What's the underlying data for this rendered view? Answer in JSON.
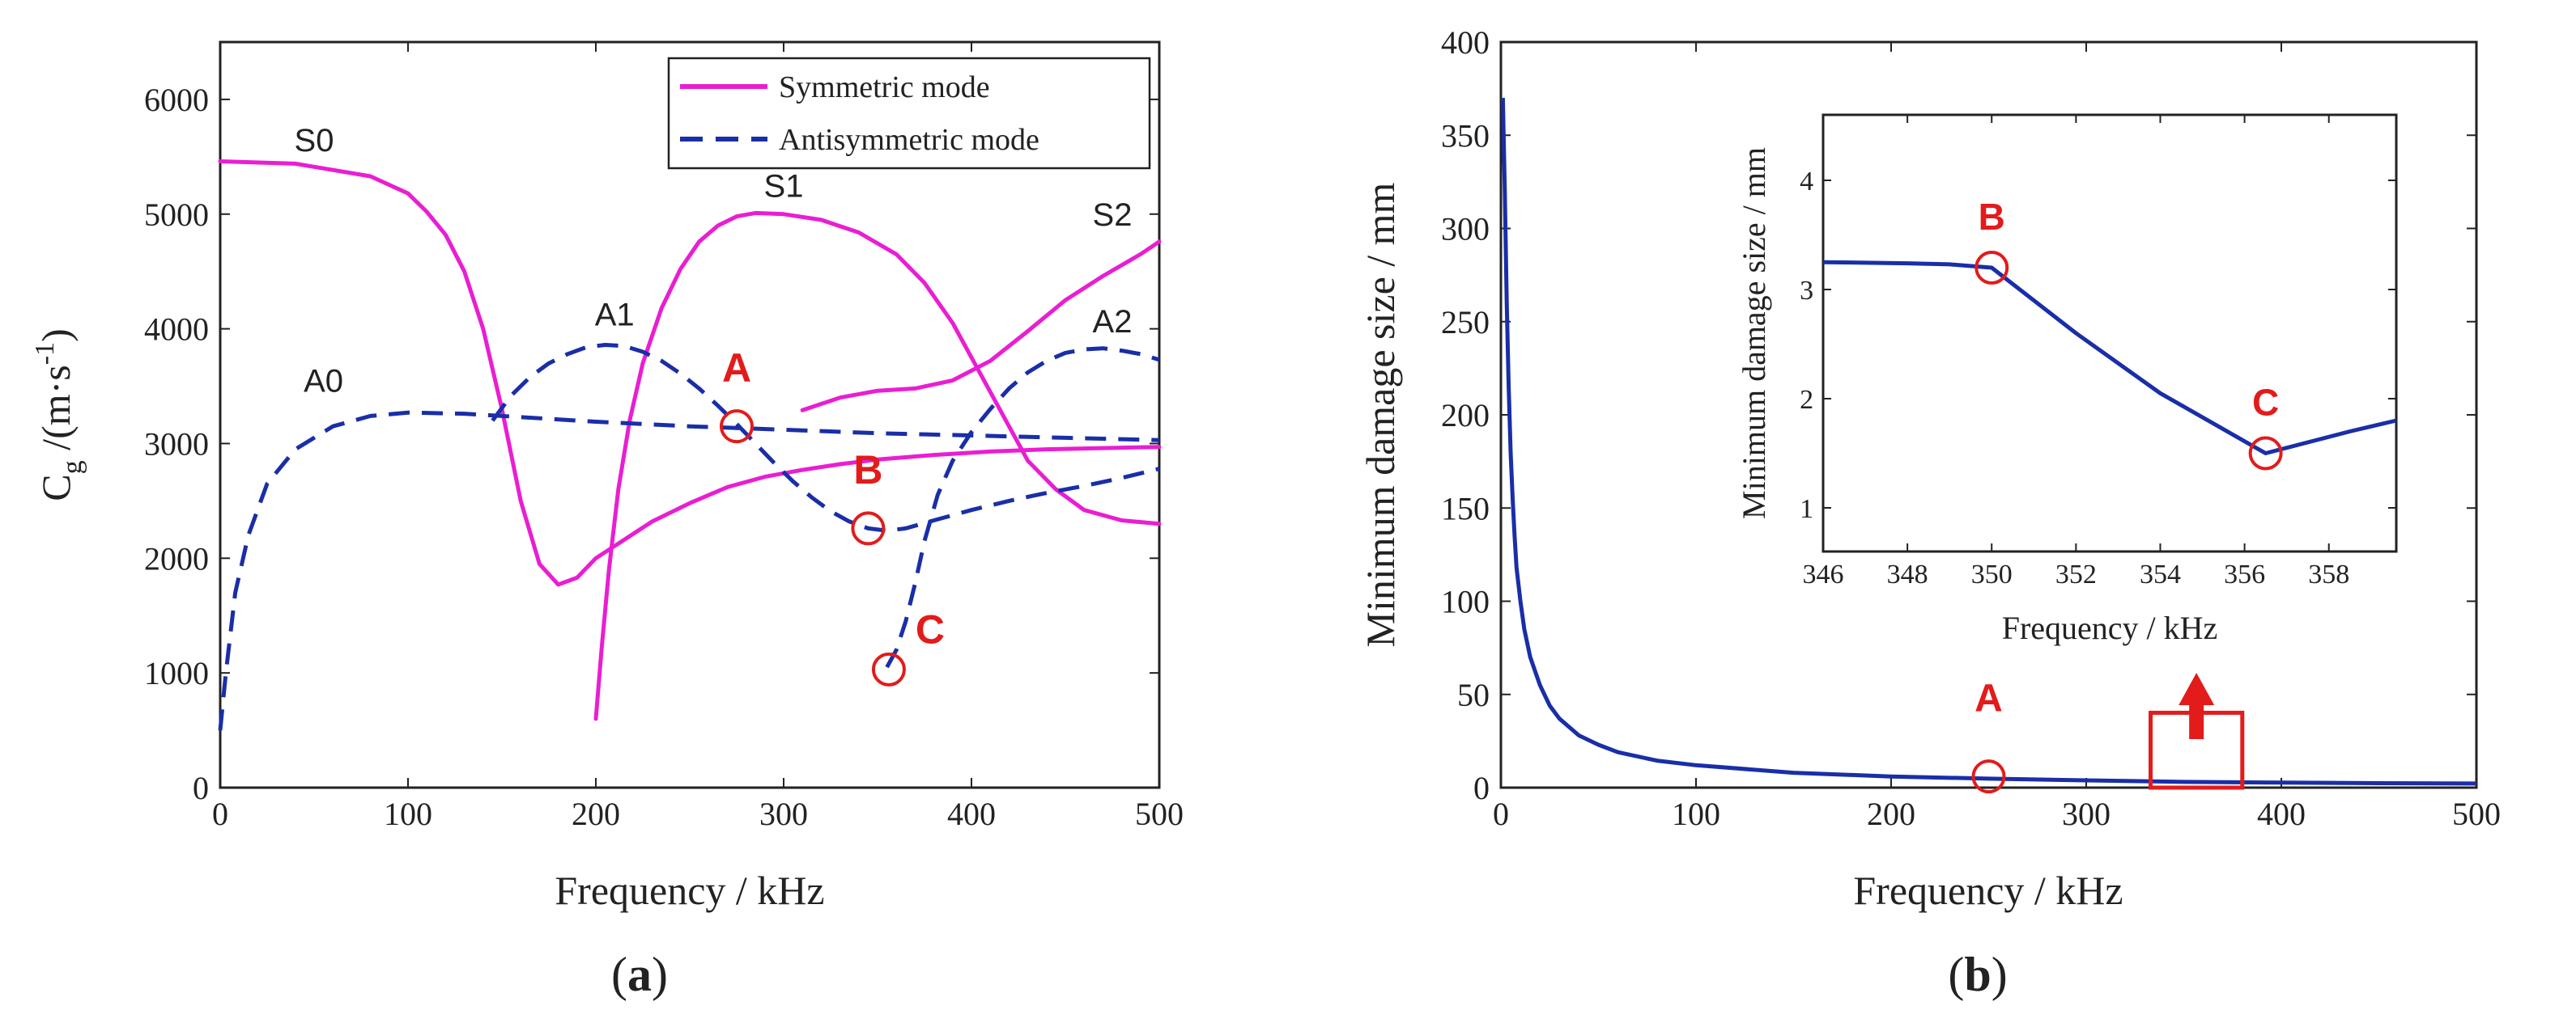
{
  "chart_data": [
    {
      "panel_label": "a",
      "type": "line",
      "xlabel": "Frequency / kHz",
      "ylabel_main": "C",
      "ylabel_sub": "g",
      "ylabel_unit": " /(m·s",
      "ylabel_sup": "-1",
      "ylabel_close": ")",
      "xlim": [
        0,
        500
      ],
      "ylim": [
        0,
        6500
      ],
      "xticks": [
        0,
        100,
        200,
        300,
        400,
        500
      ],
      "yticks": [
        0,
        1000,
        2000,
        3000,
        4000,
        5000,
        6000
      ],
      "legend": {
        "position": "top-right",
        "entries": [
          {
            "label": "Symmetric mode",
            "color": "#e91ed2",
            "dash": "solid"
          },
          {
            "label": "Antisymmetric mode",
            "color": "#1a2ea8",
            "dash": "dashed"
          }
        ]
      },
      "series": [
        {
          "name": "S0",
          "mode": "symmetric",
          "color": "#e91ed2",
          "x": [
            0,
            40,
            80,
            100,
            110,
            120,
            130,
            140,
            150,
            160,
            170,
            180,
            190,
            200,
            215,
            230,
            250,
            270,
            290,
            310,
            330,
            350,
            380,
            410,
            440,
            470,
            500
          ],
          "y": [
            5460,
            5440,
            5330,
            5180,
            5020,
            4820,
            4500,
            4000,
            3300,
            2500,
            1950,
            1770,
            1830,
            2000,
            2160,
            2320,
            2480,
            2620,
            2710,
            2770,
            2820,
            2860,
            2900,
            2930,
            2950,
            2960,
            2970
          ]
        },
        {
          "name": "S1",
          "mode": "symmetric",
          "color": "#e91ed2",
          "x": [
            200,
            203,
            207,
            212,
            218,
            225,
            235,
            245,
            255,
            265,
            275,
            285,
            300,
            320,
            340,
            360,
            375,
            390,
            400,
            410,
            420,
            430,
            445,
            460,
            480,
            500
          ],
          "y": [
            600,
            1200,
            1900,
            2600,
            3200,
            3700,
            4180,
            4520,
            4760,
            4900,
            4980,
            5010,
            5000,
            4950,
            4840,
            4650,
            4400,
            4050,
            3750,
            3450,
            3150,
            2850,
            2600,
            2420,
            2330,
            2300
          ]
        },
        {
          "name": "S2",
          "mode": "symmetric",
          "color": "#e91ed2",
          "x": [
            310,
            330,
            350,
            370,
            390,
            410,
            430,
            450,
            470,
            490,
            500
          ],
          "y": [
            3290,
            3400,
            3460,
            3480,
            3550,
            3720,
            3980,
            4250,
            4460,
            4650,
            4760
          ]
        },
        {
          "name": "A0",
          "mode": "antisymmetric",
          "color": "#1a2ea8",
          "x": [
            0,
            3,
            8,
            15,
            25,
            40,
            60,
            80,
            100,
            130,
            160,
            200,
            250,
            300,
            350,
            400,
            450,
            500
          ],
          "y": [
            500,
            1000,
            1700,
            2200,
            2650,
            2950,
            3150,
            3240,
            3270,
            3260,
            3230,
            3190,
            3150,
            3120,
            3090,
            3070,
            3050,
            3030
          ]
        },
        {
          "name": "A1",
          "mode": "antisymmetric",
          "color": "#1a2ea8",
          "x": [
            145,
            155,
            165,
            175,
            185,
            195,
            205,
            215,
            225,
            235,
            245,
            255,
            265,
            275,
            285,
            295,
            305,
            315,
            325,
            335,
            345,
            355,
            365,
            380,
            400,
            420,
            440,
            460,
            480,
            500
          ],
          "y": [
            3200,
            3420,
            3580,
            3700,
            3780,
            3840,
            3860,
            3850,
            3800,
            3720,
            3610,
            3480,
            3330,
            3170,
            3000,
            2830,
            2670,
            2530,
            2410,
            2320,
            2260,
            2240,
            2260,
            2330,
            2420,
            2500,
            2570,
            2630,
            2700,
            2780
          ]
        },
        {
          "name": "A2",
          "mode": "antisymmetric",
          "color": "#1a2ea8",
          "x": [
            355,
            360,
            365,
            370,
            375,
            382,
            390,
            400,
            410,
            420,
            430,
            440,
            450,
            460,
            470,
            480,
            490,
            500
          ],
          "y": [
            1050,
            1200,
            1450,
            1780,
            2150,
            2550,
            2850,
            3100,
            3300,
            3480,
            3620,
            3720,
            3790,
            3820,
            3830,
            3810,
            3780,
            3730
          ]
        }
      ],
      "curve_labels": [
        {
          "text": "S0",
          "x": 50,
          "y": 5550
        },
        {
          "text": "S1",
          "x": 300,
          "y": 5150
        },
        {
          "text": "S2",
          "x": 475,
          "y": 4900
        },
        {
          "text": "A0",
          "x": 55,
          "y": 3450
        },
        {
          "text": "A1",
          "x": 210,
          "y": 4030
        },
        {
          "text": "A2",
          "x": 475,
          "y": 3970
        }
      ],
      "markers": [
        {
          "text": "A",
          "x": 275,
          "y": 3150,
          "label_dx": 0,
          "label_dy": 390
        },
        {
          "text": "B",
          "x": 345,
          "y": 2260,
          "label_dx": 0,
          "label_dy": 390
        },
        {
          "text": "C",
          "x": 356,
          "y": 1030,
          "label_dx": 22,
          "label_dy": 230
        }
      ]
    },
    {
      "panel_label": "b",
      "type": "line",
      "xlabel": "Frequency / kHz",
      "ylabel": "Minimum damage size / mm",
      "xlim": [
        0,
        500
      ],
      "ylim": [
        0,
        400
      ],
      "xticks": [
        0,
        100,
        200,
        300,
        400,
        500
      ],
      "yticks": [
        0,
        50,
        100,
        150,
        200,
        250,
        300,
        350,
        400
      ],
      "series": [
        {
          "name": "Minimum damage size",
          "color": "#1a2ea8",
          "x": [
            1,
            2,
            3,
            4,
            5,
            6,
            7,
            8,
            10,
            12,
            15,
            20,
            25,
            30,
            40,
            50,
            60,
            80,
            100,
            150,
            200,
            250,
            300,
            350,
            400,
            450,
            500
          ],
          "y": [
            370,
            320,
            260,
            215,
            180,
            155,
            135,
            118,
            100,
            85,
            70,
            55,
            44,
            37,
            28,
            23,
            19,
            14.5,
            12,
            8,
            6,
            4.8,
            3.9,
            3.1,
            2.7,
            2.4,
            2.2
          ]
        }
      ],
      "markers": [
        {
          "text": "A",
          "x": 250,
          "y": 6,
          "label_dx": 0,
          "label_dy": 35
        }
      ],
      "zoom_box": {
        "x0": 333,
        "x1": 380,
        "y0": 0,
        "y1": 15
      },
      "arrow_label": "",
      "inset": {
        "xlabel": "Frequency / kHz",
        "ylabel": "Minimum damage size / mm",
        "xlim": [
          346,
          359.6
        ],
        "ylim": [
          0.6,
          4.6
        ],
        "xticks": [
          346,
          348,
          350,
          352,
          354,
          356,
          358
        ],
        "yticks": [
          1,
          2,
          3,
          4
        ],
        "series": {
          "x": [
            346,
            348,
            349,
            350,
            352,
            354,
            356.5,
            357.5,
            358.5,
            359.6
          ],
          "y": [
            3.25,
            3.24,
            3.23,
            3.2,
            2.6,
            2.05,
            1.5,
            1.6,
            1.7,
            1.8
          ]
        },
        "markers": [
          {
            "text": "B",
            "x": 350,
            "y": 3.2,
            "label_dx": 0,
            "label_dy": 0.35
          },
          {
            "text": "C",
            "x": 356.5,
            "y": 1.5,
            "label_dx": 0,
            "label_dy": 0.35
          }
        ]
      }
    }
  ],
  "annotation_color": "#e31b1b"
}
